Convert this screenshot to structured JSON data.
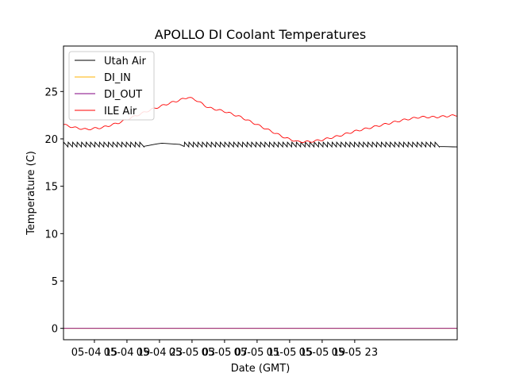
{
  "chart_data": {
    "type": "line",
    "title": "APOLLO DI Coolant Temperatures",
    "xlabel": "Date (GMT)",
    "ylabel": "Temperature (C)",
    "xlim": [
      11.2,
      59.6
    ],
    "ylim": [
      -1.2,
      29.8
    ],
    "x_unit": "hours since 05-04 00:00 GMT",
    "x_ticks": [
      {
        "value": 15,
        "label": "05-04 15"
      },
      {
        "value": 19,
        "label": "05-04 19"
      },
      {
        "value": 23,
        "label": "05-04 23"
      },
      {
        "value": 27,
        "label": "05-05 03"
      },
      {
        "value": 31,
        "label": "05-05 07"
      },
      {
        "value": 35,
        "label": "05-05 11"
      },
      {
        "value": 39,
        "label": "05-05 15"
      },
      {
        "value": 43,
        "label": "05-05 19"
      },
      {
        "value": 47,
        "label": "05-05 23"
      }
    ],
    "y_ticks": [
      {
        "value": 0,
        "label": "0"
      },
      {
        "value": 5,
        "label": "5"
      },
      {
        "value": 10,
        "label": "10"
      },
      {
        "value": 15,
        "label": "15"
      },
      {
        "value": 20,
        "label": "20"
      },
      {
        "value": 25,
        "label": "25"
      }
    ],
    "legend_position": "top-left",
    "series": [
      {
        "name": "Utah Air",
        "color": "#000000",
        "style": "sawtooth",
        "base": 19.2,
        "peak": 19.65,
        "cycle_hours": 0.55,
        "quiet_segments": [
          [
            21.0,
            23.2
          ],
          [
            23.2,
            25.8
          ],
          [
            57.0,
            59.6
          ]
        ],
        "points": [
          [
            11.2,
            19.3
          ],
          [
            21.0,
            19.2
          ],
          [
            23.2,
            19.55
          ],
          [
            25.8,
            19.4
          ],
          [
            57.0,
            19.2
          ],
          [
            59.6,
            19.15
          ]
        ]
      },
      {
        "name": "DI_IN",
        "color": "#ffb300",
        "points": [
          [
            11.2,
            0.0
          ],
          [
            59.6,
            0.0
          ]
        ]
      },
      {
        "name": "DI_OUT",
        "color": "#800080",
        "points": [
          [
            11.2,
            0.0
          ],
          [
            59.6,
            0.0
          ]
        ]
      },
      {
        "name": "ILE Air",
        "color": "#ff0000",
        "points": [
          [
            11.2,
            21.5
          ],
          [
            12.5,
            21.2
          ],
          [
            14.0,
            21.0
          ],
          [
            16.0,
            21.2
          ],
          [
            18.0,
            21.7
          ],
          [
            20.0,
            22.4
          ],
          [
            22.0,
            23.1
          ],
          [
            24.0,
            23.7
          ],
          [
            25.5,
            24.1
          ],
          [
            26.5,
            24.4
          ],
          [
            27.5,
            24.1
          ],
          [
            29.0,
            23.3
          ],
          [
            31.0,
            22.9
          ],
          [
            33.0,
            22.3
          ],
          [
            35.0,
            21.5
          ],
          [
            37.0,
            20.7
          ],
          [
            38.5,
            20.1
          ],
          [
            40.0,
            19.7
          ],
          [
            41.5,
            19.7
          ],
          [
            43.0,
            19.9
          ],
          [
            45.0,
            20.3
          ],
          [
            47.0,
            20.8
          ],
          [
            49.0,
            21.2
          ],
          [
            51.0,
            21.6
          ],
          [
            53.0,
            22.0
          ],
          [
            55.0,
            22.3
          ],
          [
            57.0,
            22.3
          ],
          [
            59.6,
            22.5
          ]
        ]
      }
    ]
  }
}
